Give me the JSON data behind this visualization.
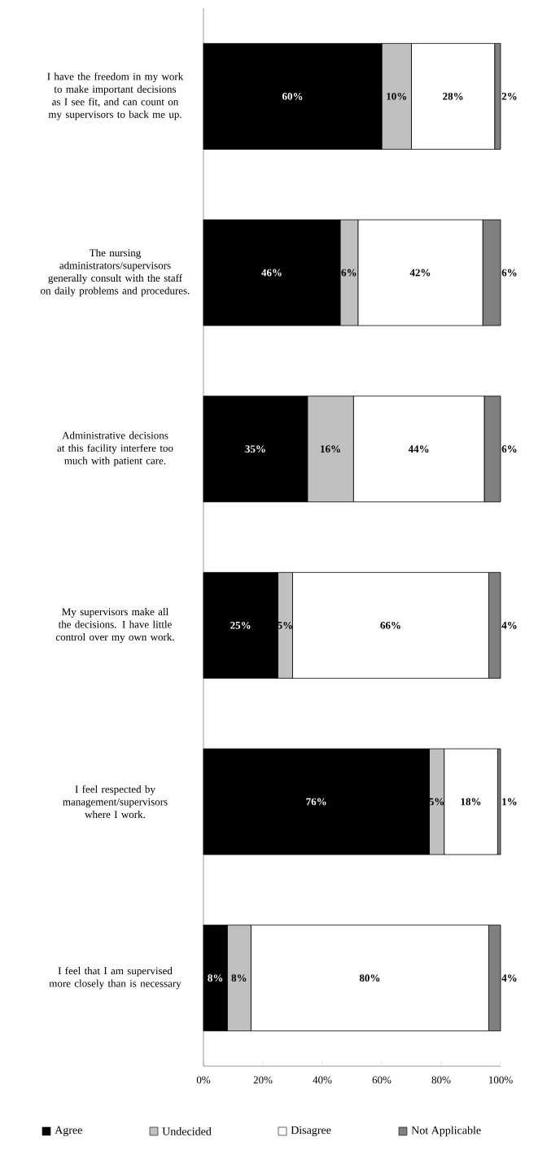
{
  "chart_data": {
    "type": "bar",
    "orientation": "horizontal",
    "stacked": true,
    "legend": "bottom",
    "categories": [
      "I have the freedom in my work to make important decisions as I see fit, and can count on my supervisors to back me up.",
      "The nursing administrators/supervisors generally consult with the staff on daily problems and procedures.",
      "Administrative decisions at this facility interfere too much with patient care.",
      "My supervisors make all the decisions. I have little control over my own work.",
      "I feel respected by management/supervisors where I work.",
      "I feel that I am supervised more closely than is necessary"
    ],
    "xlim": [
      0,
      100
    ],
    "xticks": [
      {
        "value": 0,
        "label": "0%"
      },
      {
        "value": 20,
        "label": "20%"
      },
      {
        "value": 40,
        "label": "40%"
      },
      {
        "value": 60,
        "label": "60%"
      },
      {
        "value": 80,
        "label": "80%"
      },
      {
        "value": 100,
        "label": "100%"
      }
    ],
    "series": [
      {
        "name": "Agree",
        "color": "#000000",
        "values": [
          60,
          46,
          35,
          25,
          76,
          8
        ],
        "value_labels": [
          "60%",
          "46%",
          "35%",
          "25%",
          "76%",
          "8%"
        ]
      },
      {
        "name": "Undecided",
        "color": "#c0c0c0",
        "values": [
          10,
          6,
          15.5,
          5,
          5,
          8
        ],
        "value_labels": [
          "10%",
          "6%",
          "16%",
          "5%",
          "5%",
          "8%"
        ]
      },
      {
        "name": "Disagree",
        "color": "#ffffff",
        "values": [
          28,
          42,
          44,
          66,
          18,
          80
        ],
        "value_labels": [
          "28%",
          "42%",
          "44%",
          "66%",
          "18%",
          "80%"
        ]
      },
      {
        "name": "Not Applicable",
        "color": "#808080",
        "values": [
          2,
          6,
          5.5,
          4,
          1,
          4
        ],
        "value_labels": [
          "2%",
          "6%",
          "6%",
          "4%",
          "1%",
          "4%"
        ]
      }
    ]
  }
}
